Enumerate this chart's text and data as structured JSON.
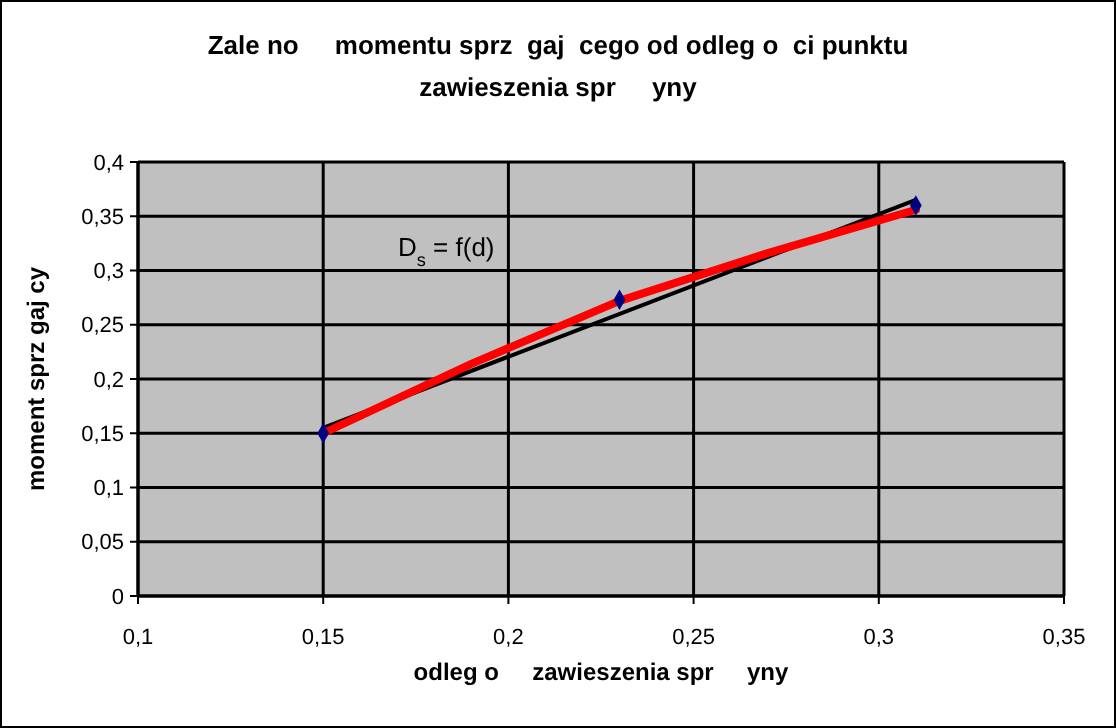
{
  "chart_data": {
    "type": "scatter",
    "title": "Zale no     momentu sprz  gaj  cego od odleg o  ci punktu\nzawieszenia spr     yny",
    "xlabel": "odleg o     zawieszenia spr     yny",
    "ylabel": "moment sprz gaj cy",
    "x": [
      0.15,
      0.23,
      0.31
    ],
    "series": [
      {
        "type": "line",
        "color": "#000000",
        "x": [
          0.15,
          0.31
        ],
        "values": [
          0.155,
          0.365
        ],
        "marker": "none"
      },
      {
        "type": "line",
        "color": "#ff0000",
        "x": [
          0.15,
          0.19,
          0.23,
          0.27,
          0.31
        ],
        "values": [
          0.15,
          0.214,
          0.272,
          0.316,
          0.356
        ],
        "marker": "none"
      },
      {
        "type": "scatter",
        "color": "#000080",
        "values": [
          0.15,
          0.273,
          0.36
        ],
        "marker": "diamond"
      }
    ],
    "annotations": [
      "D$_{s}$ = f(d)"
    ],
    "xlim": [
      0.1,
      0.35
    ],
    "xticks": [
      {
        "value": 0.1,
        "label": "0,1"
      },
      {
        "value": 0.15,
        "label": "0,15"
      },
      {
        "value": 0.2,
        "label": "0,2"
      },
      {
        "value": 0.25,
        "label": "0,25"
      },
      {
        "value": 0.3,
        "label": "0,3"
      },
      {
        "value": 0.35,
        "label": "0,35"
      }
    ],
    "ylim": [
      0,
      0.4
    ],
    "yticks": [
      {
        "value": 0,
        "label": "0"
      },
      {
        "value": 0.05,
        "label": "0,05"
      },
      {
        "value": 0.1,
        "label": "0,1"
      },
      {
        "value": 0.15,
        "label": "0,15"
      },
      {
        "value": 0.2,
        "label": "0,2"
      },
      {
        "value": 0.25,
        "label": "0,25"
      },
      {
        "value": 0.3,
        "label": "0,3"
      },
      {
        "value": 0.35,
        "label": "0,35"
      },
      {
        "value": 0.4,
        "label": "0,4"
      }
    ],
    "grid": true
  }
}
